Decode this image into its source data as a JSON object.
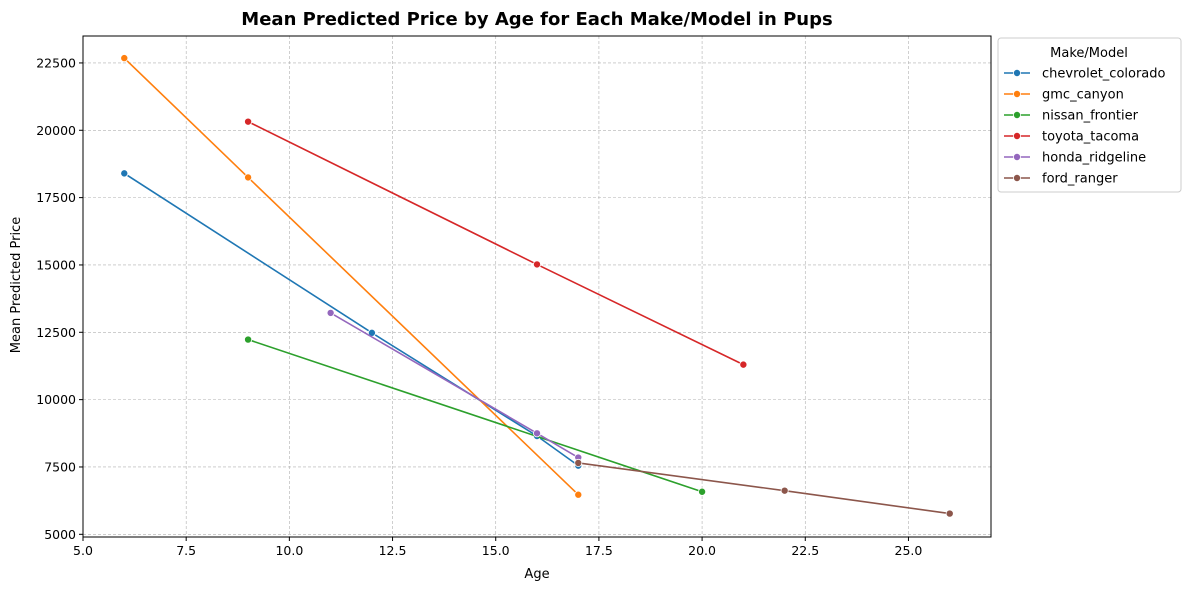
{
  "chart_data": {
    "type": "line",
    "title": "Mean Predicted Price by Age for Each Make/Model in Pups",
    "xlabel": "Age",
    "ylabel": "Mean Predicted Price",
    "xlim": [
      5.0,
      27.0
    ],
    "ylim": [
      4900,
      23500
    ],
    "xticks": [
      5.0,
      7.5,
      10.0,
      12.5,
      15.0,
      17.5,
      20.0,
      22.5,
      25.0
    ],
    "xtick_labels": [
      "5.0",
      "7.5",
      "10.0",
      "12.5",
      "15.0",
      "17.5",
      "20.0",
      "22.5",
      "25.0"
    ],
    "yticks": [
      5000,
      7500,
      10000,
      12500,
      15000,
      17500,
      20000,
      22500
    ],
    "ytick_labels": [
      "5000",
      "7500",
      "10000",
      "12500",
      "15000",
      "17500",
      "20000",
      "22500"
    ],
    "grid": true,
    "legend": {
      "title": "Make/Model",
      "placement": "outside-top-right"
    },
    "series": [
      {
        "name": "chevrolet_colorado",
        "color": "#1f77b4",
        "x": [
          6,
          12,
          16,
          17
        ],
        "y": [
          18400,
          12480,
          8650,
          7550
        ]
      },
      {
        "name": "gmc_canyon",
        "color": "#ff7f0e",
        "x": [
          6,
          9,
          17
        ],
        "y": [
          22680,
          18250,
          6470
        ]
      },
      {
        "name": "nissan_frontier",
        "color": "#2ca02c",
        "x": [
          9,
          20
        ],
        "y": [
          12230,
          6580
        ]
      },
      {
        "name": "toyota_tacoma",
        "color": "#d62728",
        "x": [
          9,
          16,
          21
        ],
        "y": [
          20320,
          15020,
          11300
        ]
      },
      {
        "name": "honda_ridgeline",
        "color": "#9467bd",
        "x": [
          11,
          16,
          17
        ],
        "y": [
          13220,
          8750,
          7850
        ]
      },
      {
        "name": "ford_ranger",
        "color": "#8c564b",
        "x": [
          17,
          22,
          26
        ],
        "y": [
          7650,
          6620,
          5770
        ]
      }
    ]
  }
}
